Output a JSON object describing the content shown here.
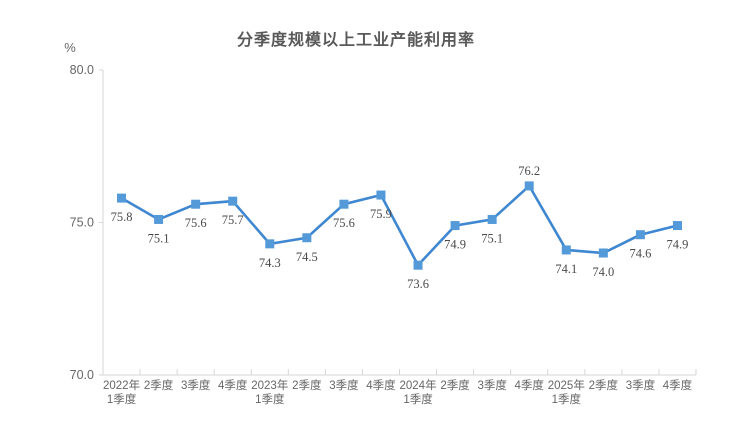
{
  "chart_data": {
    "type": "line",
    "title": "分季度规模以上工业产能利用率",
    "unit": "%",
    "categories": [
      "2022年\n1季度",
      "2季度",
      "3季度",
      "4季度",
      "2023年\n1季度",
      "2季度",
      "3季度",
      "4季度",
      "2024年\n1季度",
      "2季度",
      "3季度",
      "4季度",
      "2025年\n1季度",
      "2季度",
      "3季度",
      "4季度"
    ],
    "values": [
      75.8,
      75.1,
      75.6,
      75.7,
      74.3,
      74.5,
      75.6,
      75.9,
      73.6,
      74.9,
      75.1,
      76.2,
      74.1,
      74.0,
      74.6,
      74.9
    ],
    "xlabel": "",
    "ylabel": "%",
    "ylim": [
      70.0,
      80.0
    ],
    "yticks": [
      80.0,
      75.0,
      70.0
    ],
    "grid": false,
    "legend": "none",
    "marker": "square",
    "label_above_indices": [
      11
    ],
    "colors": {
      "line": "#3f88d1",
      "marker": "#549ad9",
      "axis": "#d6d6d6",
      "tick_text": "#666666",
      "value_label": "#4a4a4a",
      "title": "#595959"
    }
  }
}
